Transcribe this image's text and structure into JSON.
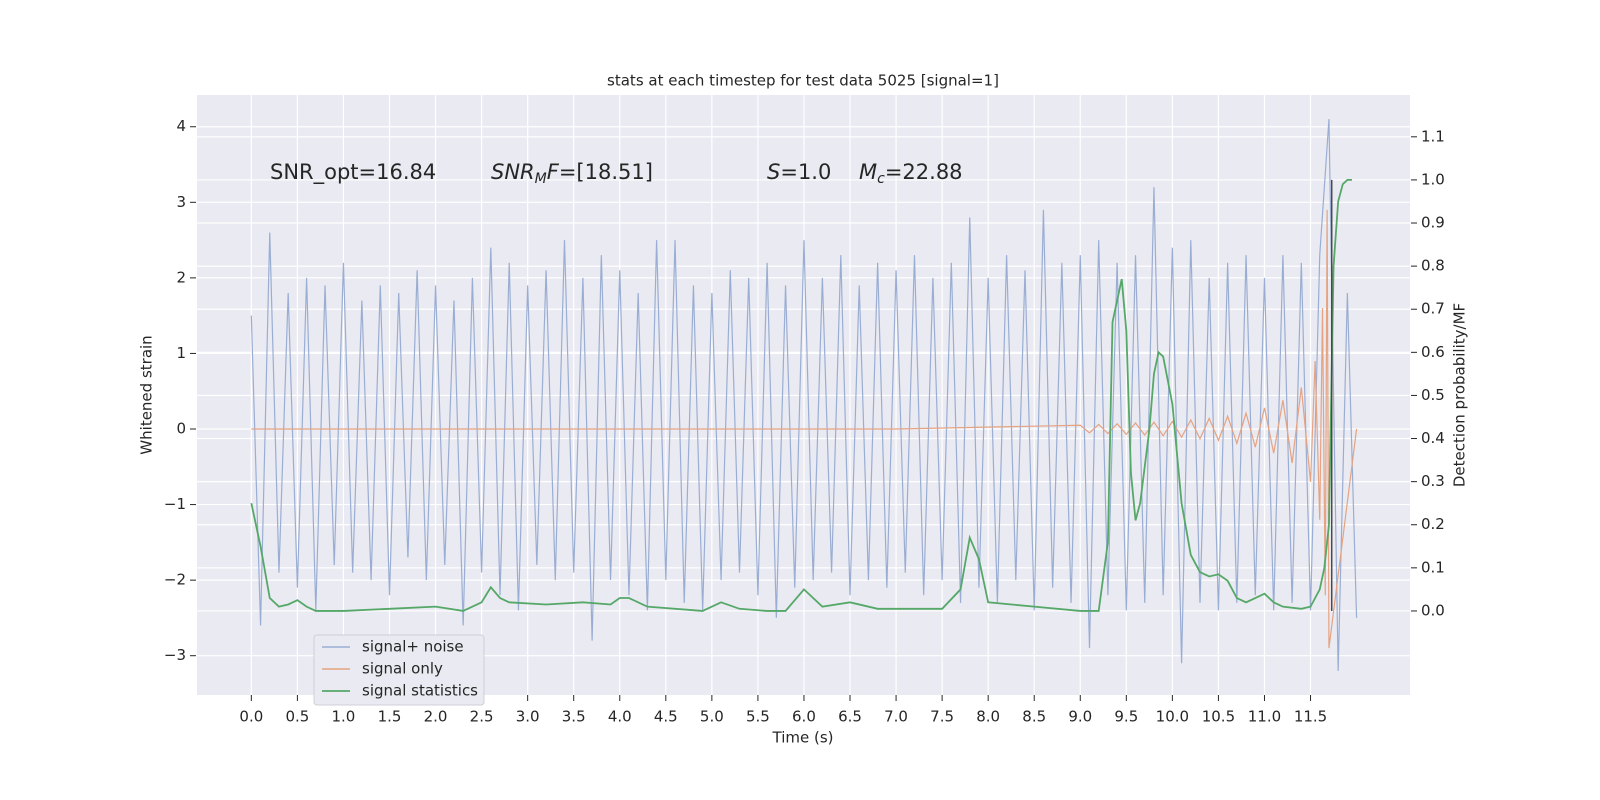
{
  "chart_data": {
    "type": "line",
    "title": "stats at each timestep for test data 5025 [signal=1]",
    "xlabel": "Time (s)",
    "ylabel": "Whitened strain",
    "y2label": "Detection probability/MF",
    "xlim": [
      -0.59,
      12.58
    ],
    "ylim": [
      -3.52,
      4.42
    ],
    "y2lim": [
      -0.195,
      1.197
    ],
    "xticks": [
      {
        "value": 0,
        "label": "0.0"
      },
      0.5,
      {
        "value": 1,
        "label": "1.0"
      },
      1.5,
      {
        "value": 2,
        "label": "2.0"
      },
      2.5,
      {
        "value": 3,
        "label": "3.0"
      },
      3.5,
      {
        "value": 4,
        "label": "4.0"
      },
      4.5,
      {
        "value": 5,
        "label": "5.0"
      },
      5.5,
      {
        "value": 6,
        "label": "6.0"
      },
      6.5,
      {
        "value": 7,
        "label": "7.0"
      },
      7.5,
      {
        "value": 8,
        "label": "8.0"
      },
      8.5,
      {
        "value": 9,
        "label": "9.0"
      },
      9.5,
      {
        "value": 10,
        "label": "10.0"
      },
      10.5,
      {
        "value": 11,
        "label": "11.0"
      },
      11.5
    ],
    "yticks": [
      {
        "value": -3,
        "label": "−3"
      },
      {
        "value": -2,
        "label": "−2"
      },
      {
        "value": -1,
        "label": "−1"
      },
      0,
      1,
      2,
      3,
      4
    ],
    "y2ticks": [
      {
        "value": 0,
        "label": "0.0"
      },
      0.1,
      0.2,
      0.3,
      0.4,
      0.5,
      0.6,
      0.7,
      0.8,
      0.9,
      {
        "value": 1,
        "label": "1.0"
      },
      1.1
    ],
    "grid": true,
    "legend": "lower left",
    "series": [
      {
        "name": "signal+ noise",
        "color": "#9aaed3",
        "x": [
          0.0,
          0.1,
          0.2,
          0.3,
          0.4,
          0.5,
          0.6,
          0.7,
          0.8,
          0.9,
          1.0,
          1.1,
          1.2,
          1.3,
          1.4,
          1.5,
          1.6,
          1.7,
          1.8,
          1.9,
          2.0,
          2.1,
          2.2,
          2.3,
          2.4,
          2.5,
          2.6,
          2.7,
          2.8,
          2.9,
          3.0,
          3.1,
          3.2,
          3.3,
          3.4,
          3.5,
          3.6,
          3.7,
          3.8,
          3.9,
          4.0,
          4.1,
          4.2,
          4.3,
          4.4,
          4.5,
          4.6,
          4.7,
          4.8,
          4.9,
          5.0,
          5.1,
          5.2,
          5.3,
          5.4,
          5.5,
          5.6,
          5.7,
          5.8,
          5.9,
          6.0,
          6.1,
          6.2,
          6.3,
          6.4,
          6.5,
          6.6,
          6.7,
          6.8,
          6.9,
          7.0,
          7.1,
          7.2,
          7.3,
          7.4,
          7.5,
          7.6,
          7.7,
          7.8,
          7.9,
          8.0,
          8.1,
          8.2,
          8.3,
          8.4,
          8.5,
          8.6,
          8.7,
          8.8,
          8.9,
          9.0,
          9.1,
          9.2,
          9.3,
          9.4,
          9.5,
          9.6,
          9.7,
          9.8,
          9.9,
          10.0,
          10.1,
          10.2,
          10.3,
          10.4,
          10.5,
          10.6,
          10.7,
          10.8,
          10.9,
          11.0,
          11.1,
          11.2,
          11.3,
          11.4,
          11.5,
          11.6,
          11.7,
          11.8,
          11.9,
          12.0
        ],
        "values": [
          1.5,
          -2.6,
          2.6,
          -1.9,
          1.8,
          -2.1,
          2.0,
          -2.4,
          1.9,
          -1.8,
          2.2,
          -1.9,
          1.7,
          -2.0,
          1.9,
          -2.2,
          1.8,
          -1.7,
          2.1,
          -2.0,
          1.9,
          -1.8,
          1.7,
          -2.6,
          2.0,
          -1.9,
          2.4,
          -2.2,
          2.2,
          -2.4,
          1.9,
          -1.8,
          2.1,
          -2.0,
          2.5,
          -1.9,
          2.0,
          -2.8,
          2.3,
          -2.0,
          2.1,
          -2.2,
          1.8,
          -2.4,
          2.5,
          -2.0,
          2.5,
          -2.3,
          1.9,
          -2.4,
          1.8,
          -2.0,
          2.1,
          -1.9,
          2.0,
          -2.2,
          2.2,
          -2.5,
          1.9,
          -2.1,
          2.5,
          -2.0,
          2.0,
          -1.9,
          2.3,
          -2.2,
          1.9,
          -2.0,
          2.2,
          -2.1,
          2.1,
          -1.9,
          2.3,
          -2.2,
          2.0,
          -2.0,
          2.2,
          -2.3,
          2.8,
          -2.1,
          2.0,
          -2.3,
          2.3,
          -2.0,
          2.1,
          -2.4,
          2.9,
          -2.1,
          2.2,
          -2.3,
          2.3,
          -2.9,
          2.5,
          -2.2,
          2.2,
          -2.4,
          2.3,
          -2.3,
          3.2,
          -2.2,
          2.4,
          -3.1,
          2.5,
          -2.3,
          2.0,
          -2.4,
          2.2,
          -2.3,
          2.3,
          -2.2,
          2.0,
          -2.4,
          2.3,
          -2.3,
          2.2,
          -2.4,
          2.3,
          4.1,
          -3.2,
          1.8,
          -2.5
        ]
      },
      {
        "name": "signal only",
        "color": "#e5a382",
        "x": [
          0.0,
          7.0,
          9.0,
          9.1,
          9.2,
          9.3,
          9.4,
          9.5,
          9.6,
          9.7,
          9.8,
          9.9,
          10.0,
          10.1,
          10.2,
          10.3,
          10.4,
          10.5,
          10.6,
          10.7,
          10.8,
          10.9,
          11.0,
          11.1,
          11.2,
          11.3,
          11.4,
          11.5,
          11.55,
          11.6,
          11.63,
          11.66,
          11.68,
          11.7,
          12.0
        ],
        "values": [
          0,
          0,
          0.05,
          -0.05,
          0.06,
          -0.06,
          0.07,
          -0.07,
          0.08,
          -0.08,
          0.09,
          -0.09,
          0.1,
          -0.11,
          0.12,
          -0.13,
          0.14,
          -0.15,
          0.17,
          -0.19,
          0.21,
          -0.24,
          0.28,
          -0.32,
          0.38,
          -0.45,
          0.55,
          -0.7,
          0.9,
          -1.2,
          1.6,
          -2.2,
          2.9,
          -2.9,
          0
        ]
      },
      {
        "name": "signal statistics",
        "color": "#55a868",
        "axis": "y2",
        "x": [
          0.0,
          0.1,
          0.2,
          0.3,
          0.4,
          0.5,
          0.6,
          0.7,
          1.0,
          1.5,
          2.0,
          2.3,
          2.5,
          2.6,
          2.7,
          2.8,
          3.2,
          3.6,
          3.9,
          4.0,
          4.1,
          4.3,
          4.9,
          5.1,
          5.3,
          5.6,
          5.8,
          6.0,
          6.2,
          6.5,
          6.8,
          7.5,
          7.7,
          7.8,
          7.9,
          8.0,
          8.5,
          9.0,
          9.2,
          9.3,
          9.35,
          9.45,
          9.5,
          9.55,
          9.6,
          9.65,
          9.75,
          9.8,
          9.85,
          9.9,
          10.0,
          10.1,
          10.2,
          10.3,
          10.4,
          10.5,
          10.6,
          10.7,
          10.8,
          10.9,
          11.0,
          11.1,
          11.2,
          11.4,
          11.5,
          11.6,
          11.65,
          11.7,
          11.75,
          11.8,
          11.85,
          11.9,
          11.95
        ],
        "values": [
          0.25,
          0.15,
          0.03,
          0.01,
          0.015,
          0.025,
          0.01,
          0.0,
          0.0,
          0.005,
          0.01,
          0.0,
          0.02,
          0.055,
          0.03,
          0.02,
          0.015,
          0.02,
          0.015,
          0.03,
          0.03,
          0.01,
          0.0,
          0.02,
          0.005,
          0.0,
          0.0,
          0.05,
          0.01,
          0.02,
          0.005,
          0.005,
          0.05,
          0.17,
          0.12,
          0.02,
          0.01,
          0.0,
          0.0,
          0.16,
          0.67,
          0.77,
          0.65,
          0.32,
          0.21,
          0.25,
          0.42,
          0.55,
          0.6,
          0.59,
          0.48,
          0.25,
          0.13,
          0.09,
          0.08,
          0.085,
          0.07,
          0.03,
          0.02,
          0.03,
          0.04,
          0.02,
          0.01,
          0.005,
          0.01,
          0.05,
          0.1,
          0.2,
          0.8,
          0.95,
          0.99,
          1.0,
          1.0
        ]
      }
    ],
    "vlines": [
      {
        "x": 11.73,
        "ymin": 0,
        "ymax": 1,
        "axis": "y2",
        "color": "#4a4a4a"
      }
    ],
    "annotations": [
      {
        "parts": [
          {
            "text": "SNR_opt=16.84"
          }
        ]
      },
      {
        "parts": [
          {
            "text": "SNR",
            "italic": true
          },
          {
            "text": "M",
            "italic": true,
            "sub": true
          },
          {
            "text": "F",
            "italic": true
          },
          {
            "text": "=[18.51]"
          }
        ]
      },
      {
        "parts": [
          {
            "text": "S",
            "italic": true
          },
          {
            "text": "=1.0"
          }
        ]
      },
      {
        "parts": [
          {
            "text": "M",
            "italic": true
          },
          {
            "text": "c",
            "italic": true,
            "sub": true
          },
          {
            "text": "=22.88"
          }
        ]
      }
    ]
  }
}
